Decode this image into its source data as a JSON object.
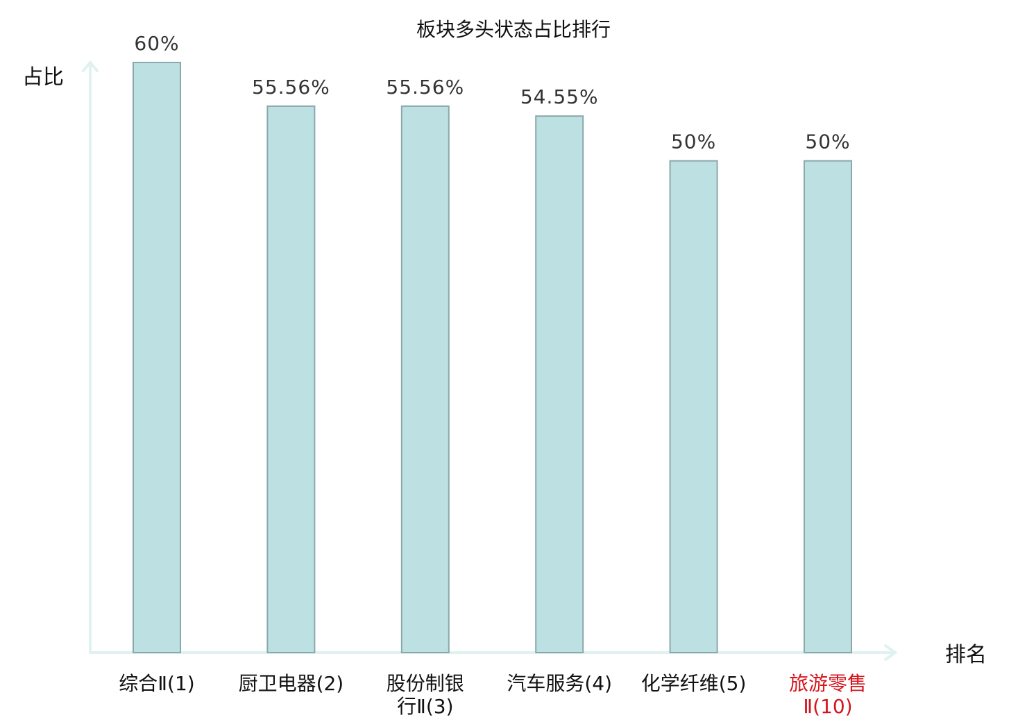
{
  "chart_data": {
    "type": "bar",
    "title": "板块多头状态占比排行",
    "ylabel": "占比",
    "xlabel": "排名",
    "categories": [
      "综合Ⅱ(1)",
      "厨卫电器(2)",
      "股份制银行Ⅱ(3)",
      "汽车服务(4)",
      "化学纤维(5)",
      "旅游零售Ⅱ(10)"
    ],
    "category_lines": [
      [
        "综合Ⅱ(1)"
      ],
      [
        "厨卫电器(2)"
      ],
      [
        "股份制银",
        "行Ⅱ(3)"
      ],
      [
        "汽车服务(4)"
      ],
      [
        "化学纤维(5)"
      ],
      [
        "旅游零售",
        "Ⅱ(10)"
      ]
    ],
    "values": [
      60,
      55.56,
      55.56,
      54.55,
      50,
      50
    ],
    "value_labels": [
      "60%",
      "55.56%",
      "55.56%",
      "54.55%",
      "50%",
      "50%"
    ],
    "highlight_category_index": 5,
    "colors": {
      "bar_fill": "#bde1e3",
      "bar_stroke": "#8aa8ab",
      "axis": "#e0f2f0",
      "label": "#111111",
      "value_label": "#333333",
      "highlight": "#d6131b"
    },
    "grid": false,
    "legend": "none"
  }
}
